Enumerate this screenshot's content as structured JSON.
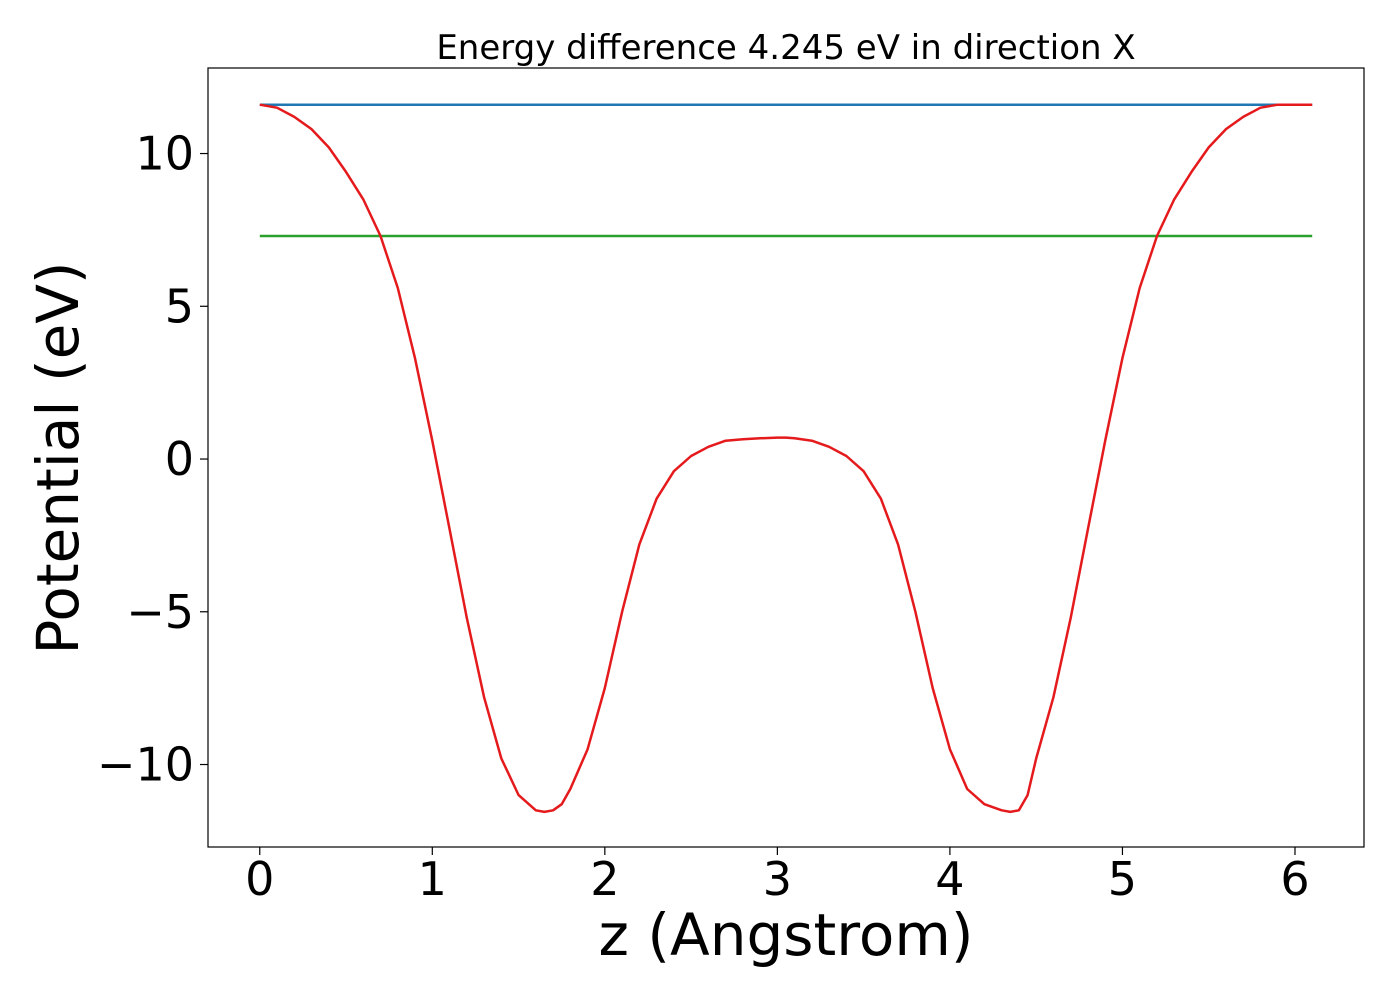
{
  "chart_data": {
    "type": "line",
    "title": "Energy difference 4.245 eV in direction X",
    "xlabel": "z (Angstrom)",
    "ylabel": "Potential (eV)",
    "xlim": [
      -0.3,
      6.4
    ],
    "ylim": [
      -12.7,
      12.8
    ],
    "xticks": [
      0,
      1,
      2,
      3,
      4,
      5,
      6
    ],
    "xtick_labels": [
      "0",
      "1",
      "2",
      "3",
      "4",
      "5",
      "6"
    ],
    "yticks": [
      -10,
      -5,
      0,
      5,
      10
    ],
    "ytick_labels": [
      "−10",
      "−5",
      "0",
      "5",
      "10"
    ],
    "grid": false,
    "legend": false,
    "series": [
      {
        "color": "#1f77b4",
        "x": [
          0,
          6.1
        ],
        "y": [
          11.6,
          11.6
        ]
      },
      {
        "color": "#2ca02c",
        "x": [
          0,
          6.1
        ],
        "y": [
          7.3,
          7.3
        ]
      },
      {
        "color": "#e41a1c",
        "x": [
          0,
          0.1,
          0.2,
          0.3,
          0.4,
          0.5,
          0.6,
          0.7,
          0.8,
          0.9,
          1.0,
          1.1,
          1.2,
          1.3,
          1.4,
          1.5,
          1.6,
          1.65,
          1.7,
          1.75,
          1.8,
          1.9,
          2.0,
          2.1,
          2.2,
          2.3,
          2.4,
          2.5,
          2.6,
          2.7,
          2.8,
          2.9,
          3.0,
          3.05,
          3.1,
          3.2,
          3.3,
          3.4,
          3.5,
          3.6,
          3.7,
          3.8,
          3.9,
          4.0,
          4.1,
          4.2,
          4.3,
          4.35,
          4.4,
          4.45,
          4.5,
          4.6,
          4.7,
          4.8,
          4.9,
          5.0,
          5.1,
          5.2,
          5.3,
          5.4,
          5.5,
          5.6,
          5.7,
          5.8,
          5.9,
          6.0,
          6.1
        ],
        "y": [
          11.6,
          11.5,
          11.2,
          10.8,
          10.2,
          9.4,
          8.5,
          7.3,
          5.6,
          3.3,
          0.6,
          -2.3,
          -5.2,
          -7.8,
          -9.8,
          -11.0,
          -11.5,
          -11.55,
          -11.5,
          -11.3,
          -10.8,
          -9.5,
          -7.5,
          -5.0,
          -2.8,
          -1.3,
          -0.4,
          0.1,
          0.4,
          0.6,
          0.65,
          0.68,
          0.7,
          0.7,
          0.68,
          0.6,
          0.4,
          0.1,
          -0.4,
          -1.3,
          -2.8,
          -5.0,
          -7.5,
          -9.5,
          -10.8,
          -11.3,
          -11.5,
          -11.55,
          -11.5,
          -11.0,
          -9.8,
          -7.8,
          -5.2,
          -2.3,
          0.6,
          3.3,
          5.6,
          7.3,
          8.5,
          9.4,
          10.2,
          10.8,
          11.2,
          11.5,
          11.6,
          11.6,
          11.6
        ]
      }
    ]
  }
}
